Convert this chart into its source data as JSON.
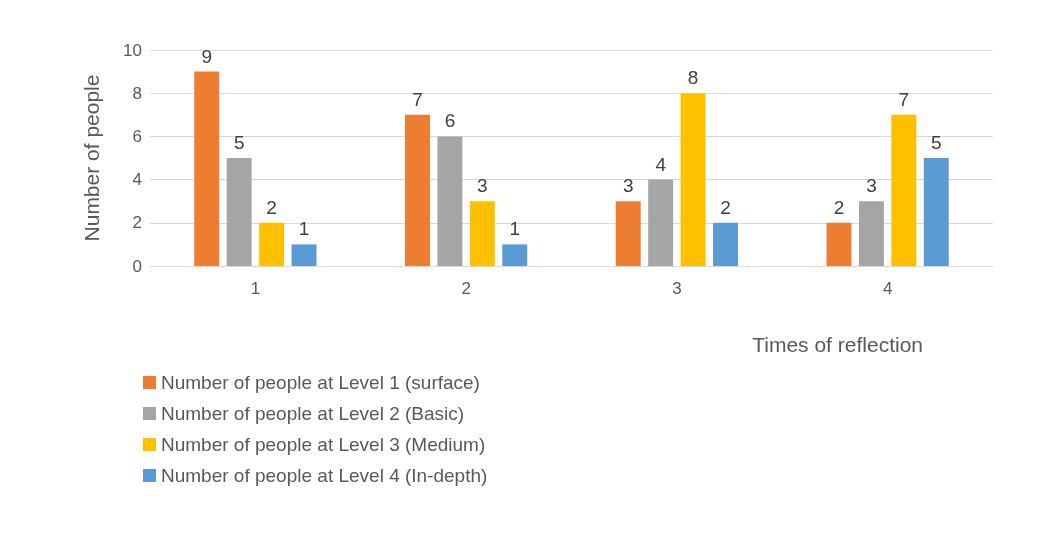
{
  "chart_data": {
    "type": "bar",
    "xlabel": "Times of reflection",
    "ylabel": "Number of people",
    "categories": [
      "1",
      "2",
      "3",
      "4"
    ],
    "series": [
      {
        "name": "Number of people at Level 1 (surface)",
        "color": "#ed7d31",
        "values": [
          9,
          7,
          3,
          2
        ]
      },
      {
        "name": "Number of people at Level 2 (Basic)",
        "color": "#a5a5a5",
        "values": [
          5,
          6,
          4,
          3
        ]
      },
      {
        "name": "Number of people at Level 3 (Medium)",
        "color": "#ffc000",
        "values": [
          2,
          3,
          8,
          7
        ]
      },
      {
        "name": "Number of people at Level 4 (In-depth)",
        "color": "#5b9bd5",
        "values": [
          1,
          1,
          2,
          5
        ]
      }
    ],
    "ylim": [
      0,
      10
    ],
    "yticks": [
      0,
      2,
      4,
      6,
      8,
      10
    ],
    "grid": "y",
    "legend": "bottom left",
    "data_labels": true
  }
}
